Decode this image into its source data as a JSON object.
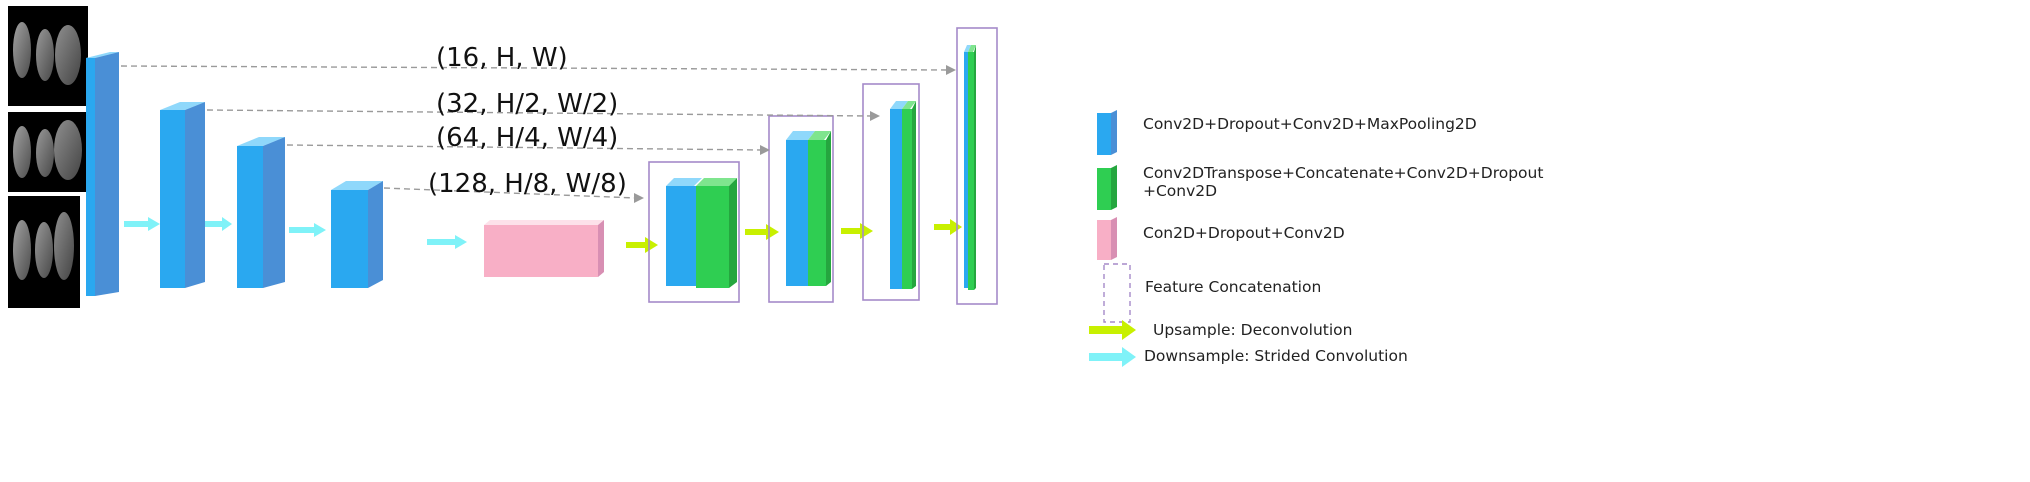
{
  "colors": {
    "encoder_front": "#2aa8f0",
    "encoder_top": "#8fd8fb",
    "encoder_side": "#4a8fd6",
    "decoder_front": "#2fce52",
    "decoder_top": "#7fe58e",
    "decoder_side": "#25a63f",
    "bottleneck_front": "#f8afc6",
    "bottleneck_top": "#fde1ea",
    "bottleneck_side": "#d88fb3",
    "concat_border": "#a58ac9",
    "skip_arrow": "#9a9a9a",
    "upsample_arrow": "#c8f000",
    "downsample_arrow": "#7ff2f8"
  },
  "input_images": {
    "name": "brain-mri-input-slices",
    "count": 3
  },
  "skip_labels": [
    {
      "id": "skip-16",
      "text": "(16, H, W)"
    },
    {
      "id": "skip-32",
      "text": "(32, H/2, W/2)"
    },
    {
      "id": "skip-64",
      "text": "(64, H/4, W/4)"
    },
    {
      "id": "skip-128",
      "text": "(128, H/8, W/8)"
    }
  ],
  "legend": {
    "encoder": "Conv2D+Dropout+Conv2D+MaxPooling2D",
    "decoder_line1": "Conv2DTranspose+Concatenate+Conv2D+Dropout",
    "decoder_line2": "+Conv2D",
    "bottleneck": "Con2D+Dropout+Conv2D",
    "concat": "Feature Concatenation",
    "upsample": "Upsample: Deconvolution",
    "downsample": "Downsample: Strided Convolution"
  }
}
